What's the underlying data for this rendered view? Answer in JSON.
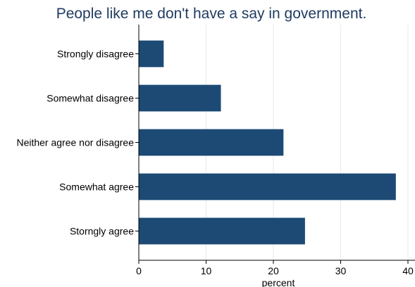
{
  "chart_data": {
    "type": "bar",
    "orientation": "horizontal",
    "title": "People like me don't have a say in government.",
    "xlabel": "percent",
    "ylabel": "",
    "categories": [
      "Strongly disagree",
      "Somewhat disagree",
      "Neither agree nor disagree",
      "Somewhat agree",
      "Storngly agree"
    ],
    "values": [
      3.7,
      12.2,
      21.5,
      38.2,
      24.7
    ],
    "xlim": [
      0,
      40
    ],
    "xticks": [
      0,
      10,
      20,
      30,
      40
    ],
    "grid": true,
    "bar_color": "#1c4a75",
    "grid_color": "#ececec"
  }
}
